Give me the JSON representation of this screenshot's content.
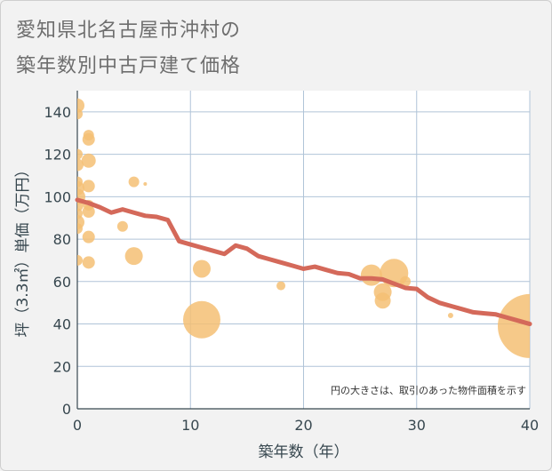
{
  "title": {
    "line1": "愛知県北名古屋市沖村の",
    "line2": "築年数別中古戸建て価格"
  },
  "colors": {
    "bubble": "#f5c074",
    "line": "#d4695a",
    "plot_bg": "#ffffff",
    "grid": "#b0c4d8",
    "axis": "#37474f"
  },
  "chart_data": {
    "type": "scatter",
    "xlabel": "築年数（年）",
    "ylabel": "坪（3.3㎡）単価（万円）",
    "xlim": [
      0,
      40
    ],
    "ylim": [
      0,
      150
    ],
    "xticks": [
      0,
      10,
      20,
      30,
      40
    ],
    "yticks": [
      0,
      20,
      40,
      60,
      80,
      100,
      120,
      140
    ],
    "note": "円の大きさは、取引のあった物件面積を示す",
    "bubbles": [
      {
        "x": 0,
        "y": 143,
        "size": 8
      },
      {
        "x": 0,
        "y": 139,
        "size": 6
      },
      {
        "x": 0,
        "y": 120,
        "size": 6
      },
      {
        "x": 0,
        "y": 115,
        "size": 7
      },
      {
        "x": 0,
        "y": 107,
        "size": 6
      },
      {
        "x": 0,
        "y": 104,
        "size": 8
      },
      {
        "x": 0,
        "y": 100,
        "size": 9
      },
      {
        "x": 0,
        "y": 96,
        "size": 7
      },
      {
        "x": 0,
        "y": 92,
        "size": 6
      },
      {
        "x": 0,
        "y": 88,
        "size": 8
      },
      {
        "x": 0,
        "y": 85,
        "size": 6
      },
      {
        "x": 0,
        "y": 70,
        "size": 6
      },
      {
        "x": 1,
        "y": 129,
        "size": 6
      },
      {
        "x": 1,
        "y": 127,
        "size": 7
      },
      {
        "x": 1,
        "y": 117,
        "size": 8
      },
      {
        "x": 1,
        "y": 105,
        "size": 7
      },
      {
        "x": 1,
        "y": 96,
        "size": 6
      },
      {
        "x": 1,
        "y": 93,
        "size": 7
      },
      {
        "x": 1,
        "y": 81,
        "size": 7
      },
      {
        "x": 1,
        "y": 69,
        "size": 7
      },
      {
        "x": 4,
        "y": 86,
        "size": 6
      },
      {
        "x": 5,
        "y": 107,
        "size": 6
      },
      {
        "x": 5,
        "y": 72,
        "size": 10
      },
      {
        "x": 6,
        "y": 106,
        "size": 2
      },
      {
        "x": 11,
        "y": 66,
        "size": 10
      },
      {
        "x": 11,
        "y": 42,
        "size": 21
      },
      {
        "x": 18,
        "y": 58,
        "size": 5
      },
      {
        "x": 26,
        "y": 63,
        "size": 12
      },
      {
        "x": 27,
        "y": 55,
        "size": 10
      },
      {
        "x": 27,
        "y": 51,
        "size": 9
      },
      {
        "x": 28,
        "y": 64,
        "size": 16
      },
      {
        "x": 29,
        "y": 60,
        "size": 6
      },
      {
        "x": 33,
        "y": 44,
        "size": 3
      },
      {
        "x": 40,
        "y": 39,
        "size": 36
      }
    ],
    "trend": {
      "x": [
        0,
        1,
        2,
        3,
        4,
        5,
        6,
        7,
        8,
        9,
        10,
        11,
        12,
        13,
        14,
        15,
        16,
        17,
        18,
        19,
        20,
        21,
        22,
        23,
        24,
        25,
        26,
        27,
        28,
        29,
        30,
        31,
        32,
        33,
        34,
        35,
        36,
        37,
        38,
        39,
        40
      ],
      "y": [
        98.5,
        97,
        95,
        92.5,
        94,
        92.5,
        91,
        90.5,
        89,
        79,
        77.5,
        76,
        74.5,
        73,
        77,
        75.5,
        72,
        70.5,
        69,
        67.5,
        66,
        67,
        65.5,
        64,
        63.5,
        61.5,
        61.5,
        61,
        59,
        57,
        56.5,
        52.5,
        50,
        48.5,
        47,
        45.5,
        45,
        44.5,
        43,
        41.5,
        40
      ]
    }
  }
}
